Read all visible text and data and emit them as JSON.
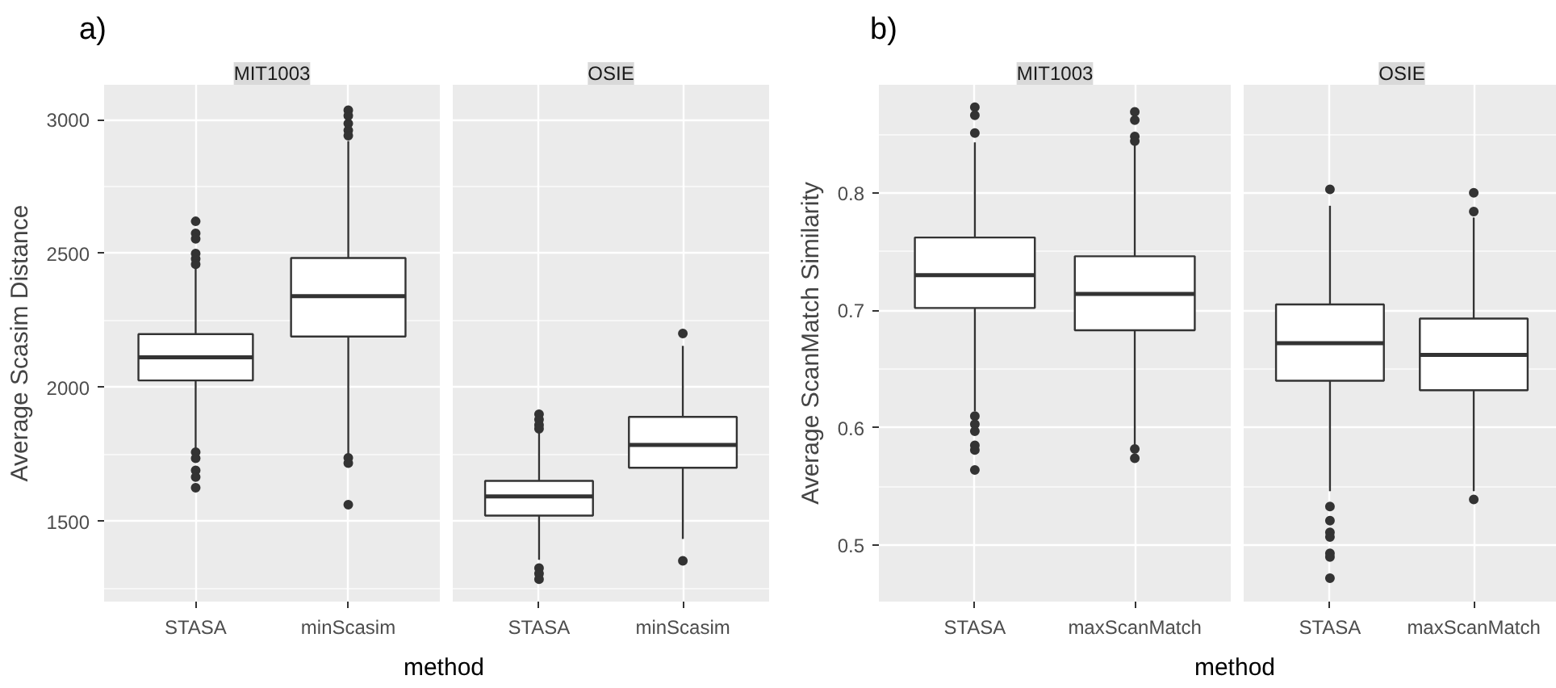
{
  "chart_data": [
    {
      "type": "box",
      "title": "MIT1003",
      "annotations": [
        "a)"
      ],
      "xlabel": "method",
      "ylabel": "Average Scasim Distance",
      "categories": [
        "STASA",
        "minScasim"
      ],
      "ylim": [
        1200,
        3130
      ],
      "yticks": [
        1500,
        2000,
        2500,
        3000
      ],
      "grid": true,
      "boxes": [
        {
          "low": 1770,
          "q1": 2026,
          "median": 2112,
          "q3": 2199,
          "high": 2450,
          "outliers": [
            2620,
            2575,
            2555,
            2500,
            2480,
            2460,
            1758,
            1735,
            1690,
            1665,
            1625
          ]
        },
        {
          "low": 1748,
          "q1": 2190,
          "median": 2341,
          "q3": 2483,
          "high": 2920,
          "outliers": [
            3035,
            3015,
            2985,
            2960,
            2940,
            1737,
            1717,
            1562
          ]
        }
      ]
    },
    {
      "type": "box",
      "title": "OSIE",
      "categories": [
        "STASA",
        "minScasim"
      ],
      "ylim": [
        1200,
        3130
      ],
      "yticks": [
        1500,
        2000,
        2500,
        3000
      ],
      "grid": true,
      "tick_labels": "x",
      "boxes": [
        {
          "low": 1356,
          "q1": 1521,
          "median": 1593,
          "q3": 1651,
          "high": 1840,
          "outliers": [
            1900,
            1880,
            1860,
            1845,
            1325,
            1305,
            1284
          ]
        },
        {
          "low": 1434,
          "q1": 1700,
          "median": 1785,
          "q3": 1890,
          "high": 2155,
          "outliers": [
            2201,
            1352
          ]
        }
      ]
    },
    {
      "type": "box",
      "title": "MIT1003",
      "annotations": [
        "b)"
      ],
      "xlabel": "method",
      "ylabel": "Average ScanMatch Similarity",
      "categories": [
        "STASA",
        "maxScanMatch"
      ],
      "ylim": [
        0.452,
        0.892
      ],
      "yticks": [
        0.5,
        0.6,
        0.7,
        0.8
      ],
      "grid": true,
      "boxes": [
        {
          "low": 0.614,
          "q1": 0.702,
          "median": 0.73,
          "q3": 0.762,
          "high": 0.843,
          "outliers": [
            0.873,
            0.866,
            0.851,
            0.61,
            0.603,
            0.597,
            0.585,
            0.581,
            0.564
          ]
        },
        {
          "low": 0.585,
          "q1": 0.683,
          "median": 0.714,
          "q3": 0.746,
          "high": 0.841,
          "outliers": [
            0.869,
            0.862,
            0.848,
            0.844,
            0.582,
            0.574
          ]
        }
      ]
    },
    {
      "type": "box",
      "title": "OSIE",
      "categories": [
        "STASA",
        "maxScanMatch"
      ],
      "ylim": [
        0.452,
        0.892
      ],
      "yticks": [
        0.5,
        0.6,
        0.7,
        0.8
      ],
      "grid": true,
      "tick_labels": "x",
      "boxes": [
        {
          "low": 0.546,
          "q1": 0.64,
          "median": 0.672,
          "q3": 0.705,
          "high": 0.789,
          "outliers": [
            0.803,
            0.533,
            0.521,
            0.511,
            0.507,
            0.493,
            0.49,
            0.472
          ]
        },
        {
          "low": 0.546,
          "q1": 0.632,
          "median": 0.662,
          "q3": 0.693,
          "high": 0.779,
          "outliers": [
            0.8,
            0.784,
            0.539
          ]
        }
      ]
    }
  ]
}
